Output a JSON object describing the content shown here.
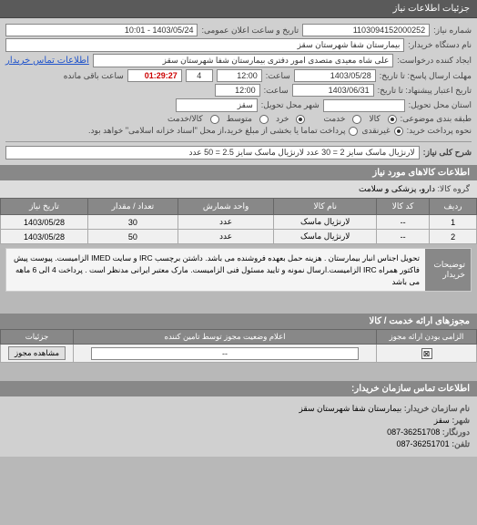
{
  "header": {
    "title": "جزئیات اطلاعات نیاز"
  },
  "form": {
    "req_num_label": "شماره نیاز:",
    "req_num": "1103094152000252",
    "public_date_label": "تاریخ و ساعت اعلان عمومی:",
    "public_date": "1403/05/24 - 10:01",
    "org_label": "نام دستگاه خریدار:",
    "org": "بیمارستان شفا شهرستان سقز",
    "requester_label": "ایجاد کننده درخواست:",
    "requester": "علی شاه معیدی متصدی امور دفتری بیمارستان شفا شهرستان سقز",
    "buyer_contact": "اطلاعات تماس خریدار",
    "deadline_send_label": "مهلت ارسال پاسخ: تا تاریخ:",
    "deadline_date": "1403/05/28",
    "time_label": "ساعت:",
    "deadline_time": "12:00",
    "days_remain": "4",
    "time_remain_label": "ساعت باقی مانده",
    "time_remain": "01:29:27",
    "validity_label": "تاریخ اعتبار پیشنهاد: تا تاریخ:",
    "validity_date": "1403/06/31",
    "validity_time": "12:00",
    "loc_province_label": "استان محل تحویل:",
    "loc_city_label": "شهر محل تحویل:",
    "loc_city": "سقز",
    "goods_group_label": "طبقه بندی موضوعی:",
    "goods_opt": "کالا",
    "service_opt": "خدمت",
    "small_opt": "خرد",
    "medium_opt": "متوسط",
    "cash_opt": "کالا/خدمت",
    "payment_label": "نحوه پرداخت خرید:",
    "payment_a": "غیرنقدی",
    "payment_b": "پرداخت تماما یا بخشی از مبلغ خرید،از محل \"اسناد خزانه اسلامی\" خواهد بود.",
    "need_desc_label": "شرح کلی نیاز:",
    "need_desc": "لارنژیال ماسک سایز 2 = 30 عدد لارنژیال ماسک سایز 2.5 = 50 عدد"
  },
  "goods_section": {
    "title": "اطلاعات کالاهای مورد نیاز",
    "group_label": "گروه کالا:",
    "group": "دارو، پزشکی و سلامت"
  },
  "items_table": {
    "headers": [
      "ردیف",
      "کد کالا",
      "نام کالا",
      "واحد شمارش",
      "تعداد / مقدار",
      "تاریخ نیاز"
    ],
    "rows": [
      [
        "1",
        "--",
        "لارنژیال ماسک",
        "عدد",
        "30",
        "1403/05/28"
      ],
      [
        "2",
        "--",
        "لارنژیال ماسک",
        "عدد",
        "50",
        "1403/05/28"
      ]
    ]
  },
  "description": {
    "label": "توضیحات خریدار",
    "text": "تحویل اجناس انبار بیمارستان . هزینه حمل بعهده فروشنده می باشد. داشتن برچسب IRC و سایت IMED الزامیست. پیوست پیش فاکتور همراه IRC الزامیست.ارسال نمونه و تایید مسئول فنی الزامیست. مارک معتبر ایرانی مدنظر است . پرداخت 4 الی 6 ماهه می باشد"
  },
  "cert_section": {
    "title": "مجوزهای ارائه خدمت / کالا",
    "headers": [
      "الزامی بودن ارائه مجوز",
      "اعلام وضعیت مجوز توسط تامین کننده",
      "جزئیات"
    ],
    "checkbox_mark": "⊠",
    "field_val": "--",
    "btn": "مشاهده مجوز"
  },
  "contact": {
    "title": "اطلاعات تماس سازمان خریدار:",
    "org_label": "نام سازمان خریدار:",
    "org": "بیمارستان شفا شهرستان سقز",
    "city_label": "شهر:",
    "city": "سقز",
    "fax_label": "دورنگار:",
    "fax": "36251708-087",
    "tel_label": "تلفن:",
    "tel": "36251701-087"
  }
}
